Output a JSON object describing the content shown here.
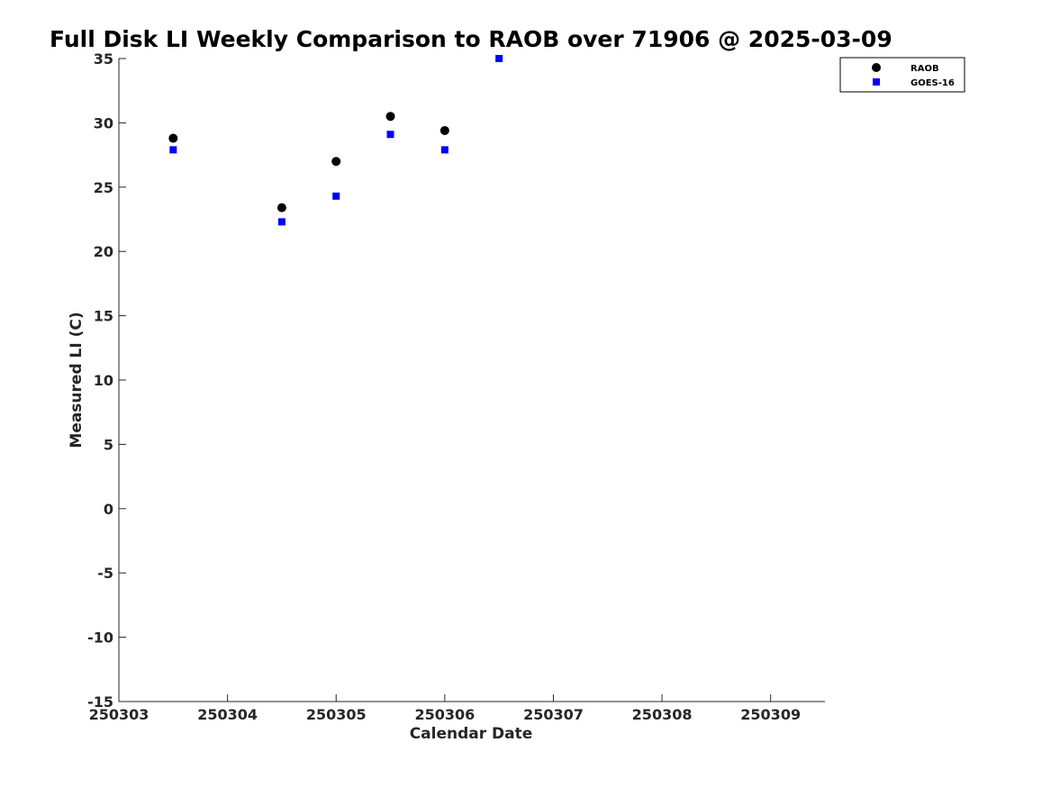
{
  "chart_data": {
    "type": "scatter",
    "title": "Full Disk LI Weekly Comparison to RAOB over 71906 @ 2025-03-09",
    "xlabel": "Calendar Date",
    "ylabel": "Measured LI (C)",
    "x_ticks": [
      "250303",
      "250304",
      "250305",
      "250306",
      "250307",
      "250308",
      "250309"
    ],
    "x_tick_values": [
      0,
      1,
      2,
      3,
      4,
      5,
      6
    ],
    "xlim": [
      0,
      6.5
    ],
    "ylim": [
      -15,
      35
    ],
    "y_ticks": [
      -15,
      -10,
      -5,
      0,
      5,
      10,
      15,
      20,
      25,
      30,
      35
    ],
    "grid": false,
    "legend_position": "top-right",
    "series": [
      {
        "name": "RAOB",
        "marker": "circle",
        "color": "#000000",
        "x": [
          0.5,
          1.5,
          2.0,
          2.5,
          3.0
        ],
        "y": [
          28.8,
          23.4,
          27.0,
          30.5,
          29.4
        ]
      },
      {
        "name": "GOES-16",
        "marker": "square",
        "color": "#0000ff",
        "x": [
          0.5,
          1.5,
          2.0,
          2.5,
          3.0,
          3.5
        ],
        "y": [
          27.9,
          22.3,
          24.3,
          29.1,
          27.9,
          35.0
        ]
      }
    ]
  }
}
